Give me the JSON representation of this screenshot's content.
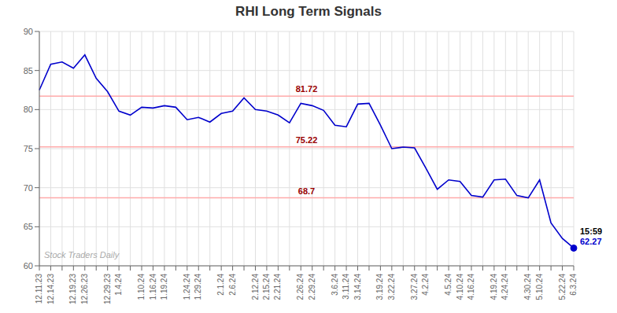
{
  "chart_data": {
    "type": "line",
    "title": "RHI Long Term Signals",
    "categories": [
      "12.11.23",
      "12.14.23",
      null,
      "12.19.23",
      "12.26.23",
      null,
      "12.29.23",
      "1.4.24",
      null,
      "1.10.24",
      "1.16.24",
      "1.19.24",
      null,
      "1.24.24",
      "1.29.24",
      null,
      "2.1.24",
      "2.6.24",
      null,
      "2.12.24",
      "2.15.24",
      "2.21.24",
      null,
      "2.26.24",
      "2.29.24",
      null,
      "3.6.24",
      "3.11.24",
      "3.14.24",
      null,
      "3.19.24",
      "3.22.24",
      null,
      "3.27.24",
      "4.2.24",
      null,
      "4.5.24",
      "4.10.24",
      "4.16.24",
      null,
      "4.19.24",
      "4.24.24",
      null,
      "4.30.24",
      "5.10.24",
      null,
      "5.22.24",
      "6.3.24"
    ],
    "values": [
      82.5,
      85.8,
      86.1,
      85.3,
      87.0,
      84.0,
      82.3,
      79.8,
      79.3,
      80.3,
      80.2,
      80.5,
      80.3,
      78.7,
      79.0,
      78.4,
      79.5,
      79.8,
      81.5,
      80.0,
      79.8,
      79.3,
      78.3,
      80.8,
      80.5,
      79.9,
      78.0,
      77.8,
      80.7,
      80.8,
      78.0,
      75.0,
      75.2,
      75.1,
      72.5,
      69.8,
      71.0,
      70.8,
      69.0,
      68.8,
      71.0,
      71.1,
      69.0,
      68.7,
      71.0,
      65.5,
      63.5,
      62.27
    ],
    "color": "#0000cc",
    "ylim": [
      60,
      90
    ],
    "yticks": [
      60,
      65,
      70,
      75,
      80,
      85,
      90
    ],
    "grid": true,
    "reference_lines": {
      "color": "#ffaaaa",
      "label_color": "#990000",
      "lines": [
        {
          "value": 81.72,
          "label": "81.72"
        },
        {
          "value": 75.22,
          "label": "75.22"
        },
        {
          "value": 68.7,
          "label": "68.7"
        }
      ]
    },
    "last_point": {
      "marker": "circle",
      "color": "#0000cc",
      "labels": [
        {
          "text": "15:59",
          "color": "#000000"
        },
        {
          "text": "62.27",
          "color": "#0000cc"
        }
      ]
    },
    "watermark": {
      "text": "Stock Traders Daily",
      "color": "#aaaaaa"
    }
  }
}
